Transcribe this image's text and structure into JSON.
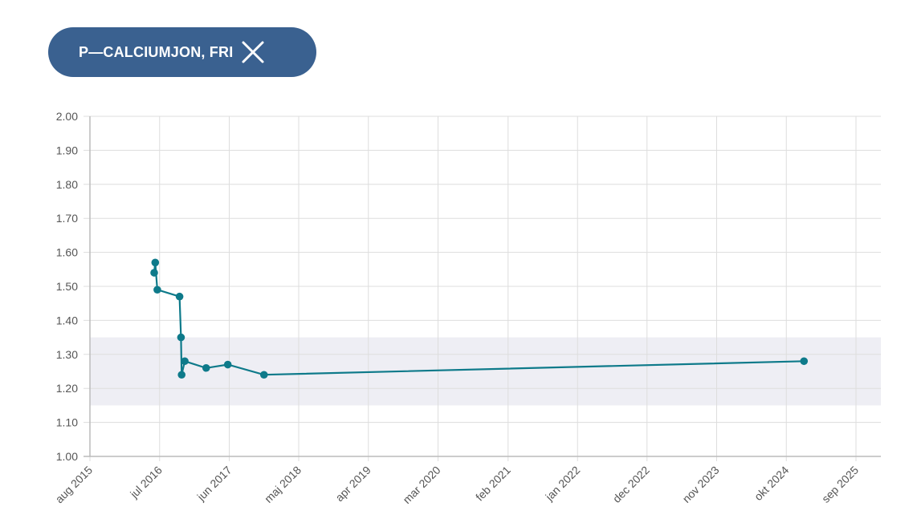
{
  "filter_chip": {
    "label": "P—CALCIUMJON, FRI",
    "close_icon": "close-icon"
  },
  "colors": {
    "chip_bg": "#3a6190",
    "line": "#0e7a8a",
    "reference_band": "#eeeef4",
    "grid": "#dddddd"
  },
  "chart_data": {
    "type": "line",
    "title": "",
    "xlabel": "",
    "ylabel": "",
    "ylim": [
      1.0,
      2.0
    ],
    "y_ticks": [
      "2.00",
      "1.90",
      "1.80",
      "1.70",
      "1.60",
      "1.50",
      "1.40",
      "1.30",
      "1.20",
      "1.10",
      "1.00"
    ],
    "x_ticks": [
      {
        "label": "aug 2015",
        "date": "2015-08-01"
      },
      {
        "label": "jul 2016",
        "date": "2016-07-01"
      },
      {
        "label": "jun 2017",
        "date": "2017-06-01"
      },
      {
        "label": "maj 2018",
        "date": "2018-05-01"
      },
      {
        "label": "apr 2019",
        "date": "2019-04-01"
      },
      {
        "label": "mar 2020",
        "date": "2020-03-01"
      },
      {
        "label": "feb 2021",
        "date": "2021-02-01"
      },
      {
        "label": "jan 2022",
        "date": "2022-01-01"
      },
      {
        "label": "dec 2022",
        "date": "2022-12-01"
      },
      {
        "label": "nov 2023",
        "date": "2023-11-01"
      },
      {
        "label": "okt 2024",
        "date": "2024-10-01"
      },
      {
        "label": "sep 2025",
        "date": "2025-09-01"
      }
    ],
    "reference_range": [
      1.15,
      1.35
    ],
    "grid": true,
    "legend": "none",
    "series": [
      {
        "points": [
          {
            "x": "2016-06-05",
            "y": 1.54
          },
          {
            "x": "2016-06-10",
            "y": 1.57
          },
          {
            "x": "2016-06-20",
            "y": 1.49
          },
          {
            "x": "2016-10-05",
            "y": 1.47
          },
          {
            "x": "2016-10-12",
            "y": 1.35
          },
          {
            "x": "2016-10-15",
            "y": 1.24
          },
          {
            "x": "2016-10-30",
            "y": 1.28
          },
          {
            "x": "2017-02-10",
            "y": 1.26
          },
          {
            "x": "2017-05-25",
            "y": 1.27
          },
          {
            "x": "2017-11-15",
            "y": 1.24
          },
          {
            "x": "2024-12-25",
            "y": 1.28
          }
        ]
      }
    ]
  }
}
